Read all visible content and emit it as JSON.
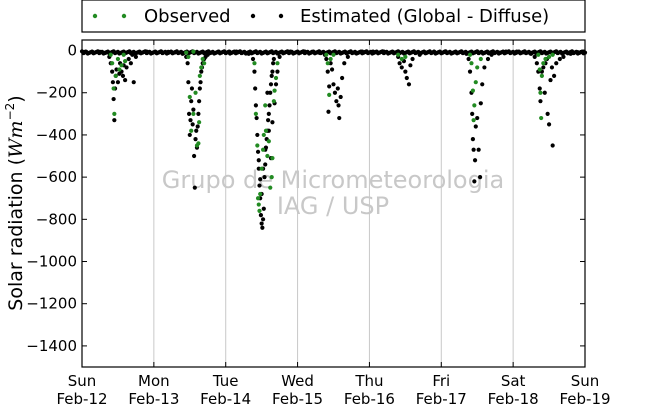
{
  "chart_data": {
    "type": "scatter",
    "ylabel": "Solar radiation (",
    "ylabel_units": {
      "base": "Wm",
      "exponent": "−2"
    },
    "ylabel_close": ")",
    "ylim": [
      -1500,
      50
    ],
    "yticks": [
      0,
      -200,
      -400,
      -600,
      -800,
      -1000,
      -1200,
      -1400
    ],
    "xlim": [
      0,
      7
    ],
    "xticks": [
      {
        "x": 0,
        "day": "Sun",
        "date": "Feb-12"
      },
      {
        "x": 1,
        "day": "Mon",
        "date": "Feb-13"
      },
      {
        "x": 2,
        "day": "Tue",
        "date": "Feb-14"
      },
      {
        "x": 3,
        "day": "Wed",
        "date": "Feb-15"
      },
      {
        "x": 4,
        "day": "Thu",
        "date": "Feb-16"
      },
      {
        "x": 5,
        "day": "Fri",
        "date": "Feb-17"
      },
      {
        "x": 6,
        "day": "Sat",
        "date": "Feb-18"
      },
      {
        "x": 7,
        "day": "Sun",
        "date": "Feb-19"
      }
    ],
    "x_unit": "days since Sun Feb-12 00:00",
    "grid": "vertical",
    "legend_position": "top-outside",
    "watermark": [
      "Grupo de Micrometeorologia",
      "IAG / USP"
    ],
    "series": [
      {
        "name": "Observed",
        "color": "#228b22",
        "points": [
          [
            0.4,
            -20
          ],
          [
            0.42,
            -60
          ],
          [
            0.44,
            -180
          ],
          [
            0.45,
            -300
          ],
          [
            0.47,
            -120
          ],
          [
            0.5,
            -40
          ],
          [
            0.52,
            -90
          ],
          [
            0.55,
            -70
          ],
          [
            0.58,
            -20
          ],
          [
            0.6,
            -50
          ],
          [
            1.45,
            -10
          ],
          [
            1.55,
            -5
          ],
          [
            1.48,
            -30
          ],
          [
            1.5,
            -220
          ],
          [
            1.52,
            -380
          ],
          [
            1.55,
            -300
          ],
          [
            1.58,
            -200
          ],
          [
            1.6,
            -450
          ],
          [
            1.62,
            -440
          ],
          [
            1.63,
            -340
          ],
          [
            1.64,
            -120
          ],
          [
            1.66,
            -80
          ],
          [
            1.68,
            -40
          ],
          [
            1.7,
            -60
          ],
          [
            2.4,
            -60
          ],
          [
            2.42,
            -300
          ],
          [
            2.44,
            -450
          ],
          [
            2.45,
            -700
          ],
          [
            2.46,
            -730
          ],
          [
            2.47,
            -760
          ],
          [
            2.48,
            -680
          ],
          [
            2.5,
            -560
          ],
          [
            2.52,
            -470
          ],
          [
            2.53,
            -400
          ],
          [
            2.55,
            -260
          ],
          [
            2.56,
            -380
          ],
          [
            2.58,
            -500
          ],
          [
            2.6,
            -430
          ],
          [
            2.62,
            -650
          ],
          [
            2.64,
            -600
          ],
          [
            2.65,
            -510
          ],
          [
            2.67,
            -240
          ],
          [
            2.68,
            -190
          ],
          [
            2.7,
            -130
          ],
          [
            2.72,
            -60
          ],
          [
            3.4,
            -20
          ],
          [
            3.42,
            -60
          ],
          [
            3.44,
            -210
          ],
          [
            3.46,
            -40
          ],
          [
            3.5,
            -20
          ],
          [
            4.4,
            -20
          ],
          [
            4.45,
            -40
          ],
          [
            4.5,
            -30
          ],
          [
            5.4,
            -20
          ],
          [
            5.42,
            -60
          ],
          [
            5.44,
            -190
          ],
          [
            5.45,
            -330
          ],
          [
            5.46,
            -260
          ],
          [
            5.48,
            -150
          ],
          [
            5.5,
            -80
          ],
          [
            5.55,
            -40
          ],
          [
            6.35,
            -20
          ],
          [
            6.37,
            -90
          ],
          [
            6.38,
            -200
          ],
          [
            6.39,
            -320
          ],
          [
            6.4,
            -120
          ],
          [
            6.42,
            -60
          ],
          [
            6.45,
            -40
          ],
          [
            6.5,
            -30
          ],
          [
            6.55,
            -20
          ]
        ]
      },
      {
        "name": "Estimated (Global - Diffuse)",
        "color": "#000000",
        "points": [
          [
            0.05,
            -5
          ],
          [
            0.15,
            -8
          ],
          [
            0.25,
            -6
          ],
          [
            0.33,
            -10
          ],
          [
            0.38,
            -30
          ],
          [
            0.4,
            -60
          ],
          [
            0.42,
            -100
          ],
          [
            0.43,
            -150
          ],
          [
            0.44,
            -230
          ],
          [
            0.45,
            -330
          ],
          [
            0.46,
            -180
          ],
          [
            0.47,
            -120
          ],
          [
            0.48,
            -90
          ],
          [
            0.5,
            -150
          ],
          [
            0.52,
            -110
          ],
          [
            0.53,
            -60
          ],
          [
            0.55,
            -100
          ],
          [
            0.57,
            -120
          ],
          [
            0.58,
            -70
          ],
          [
            0.6,
            -140
          ],
          [
            0.62,
            -80
          ],
          [
            0.65,
            -40
          ],
          [
            0.68,
            -60
          ],
          [
            0.7,
            -20
          ],
          [
            0.72,
            -150
          ],
          [
            0.75,
            -30
          ],
          [
            0.8,
            -10
          ],
          [
            0.9,
            -5
          ],
          [
            1.1,
            -5
          ],
          [
            1.2,
            -6
          ],
          [
            1.3,
            -8
          ],
          [
            1.4,
            -15
          ],
          [
            1.45,
            -30
          ],
          [
            1.47,
            -60
          ],
          [
            1.48,
            -150
          ],
          [
            1.49,
            -300
          ],
          [
            1.5,
            -400
          ],
          [
            1.51,
            -330
          ],
          [
            1.52,
            -240
          ],
          [
            1.53,
            -180
          ],
          [
            1.54,
            -350
          ],
          [
            1.55,
            -280
          ],
          [
            1.56,
            -500
          ],
          [
            1.57,
            -650
          ],
          [
            1.58,
            -420
          ],
          [
            1.59,
            -380
          ],
          [
            1.6,
            -460
          ],
          [
            1.61,
            -360
          ],
          [
            1.62,
            -300
          ],
          [
            1.63,
            -240
          ],
          [
            1.64,
            -180
          ],
          [
            1.65,
            -150
          ],
          [
            1.66,
            -100
          ],
          [
            1.67,
            -80
          ],
          [
            1.68,
            -60
          ],
          [
            1.7,
            -40
          ],
          [
            1.72,
            -30
          ],
          [
            1.75,
            -20
          ],
          [
            1.8,
            -10
          ],
          [
            1.9,
            -5
          ],
          [
            2.05,
            -5
          ],
          [
            2.15,
            -5
          ],
          [
            2.25,
            -8
          ],
          [
            2.32,
            -15
          ],
          [
            2.38,
            -40
          ],
          [
            2.4,
            -100
          ],
          [
            2.41,
            -180
          ],
          [
            2.42,
            -260
          ],
          [
            2.43,
            -320
          ],
          [
            2.44,
            -400
          ],
          [
            2.45,
            -480
          ],
          [
            2.46,
            -560
          ],
          [
            2.47,
            -640
          ],
          [
            2.48,
            -700
          ],
          [
            2.49,
            -780
          ],
          [
            2.5,
            -820
          ],
          [
            2.51,
            -840
          ],
          [
            2.52,
            -800
          ],
          [
            2.53,
            -750
          ],
          [
            2.54,
            -600
          ],
          [
            2.55,
            -540
          ],
          [
            2.56,
            -460
          ],
          [
            2.57,
            -420
          ],
          [
            2.58,
            -380
          ],
          [
            2.59,
            -330
          ],
          [
            2.6,
            -300
          ],
          [
            2.61,
            -260
          ],
          [
            2.62,
            -200
          ],
          [
            2.63,
            -160
          ],
          [
            2.64,
            -120
          ],
          [
            2.65,
            -100
          ],
          [
            2.66,
            -60
          ],
          [
            2.67,
            -40
          ],
          [
            2.7,
            -160
          ],
          [
            2.72,
            -100
          ],
          [
            2.75,
            -30
          ],
          [
            2.8,
            -10
          ],
          [
            2.9,
            -5
          ],
          [
            2.46,
            -520
          ],
          [
            2.48,
            -610
          ],
          [
            2.5,
            -680
          ],
          [
            2.52,
            -560
          ],
          [
            2.55,
            -470
          ],
          [
            2.58,
            -200
          ],
          [
            2.6,
            -380
          ],
          [
            2.63,
            -510
          ],
          [
            2.65,
            -340
          ],
          [
            2.68,
            -250
          ],
          [
            3.1,
            -5
          ],
          [
            3.2,
            -6
          ],
          [
            3.3,
            -10
          ],
          [
            3.38,
            -20
          ],
          [
            3.4,
            -40
          ],
          [
            3.42,
            -100
          ],
          [
            3.43,
            -290
          ],
          [
            3.44,
            -170
          ],
          [
            3.46,
            -60
          ],
          [
            3.48,
            -90
          ],
          [
            3.5,
            -160
          ],
          [
            3.52,
            -200
          ],
          [
            3.54,
            -240
          ],
          [
            3.56,
            -180
          ],
          [
            3.57,
            -260
          ],
          [
            3.58,
            -320
          ],
          [
            3.6,
            -220
          ],
          [
            3.62,
            -130
          ],
          [
            3.65,
            -60
          ],
          [
            3.7,
            -30
          ],
          [
            3.8,
            -10
          ],
          [
            3.9,
            -5
          ],
          [
            4.05,
            -5
          ],
          [
            4.2,
            -5
          ],
          [
            4.35,
            -10
          ],
          [
            4.4,
            -30
          ],
          [
            4.42,
            -60
          ],
          [
            4.45,
            -80
          ],
          [
            4.48,
            -50
          ],
          [
            4.5,
            -100
          ],
          [
            4.52,
            -130
          ],
          [
            4.55,
            -160
          ],
          [
            4.57,
            -70
          ],
          [
            4.6,
            -40
          ],
          [
            4.7,
            -20
          ],
          [
            4.8,
            -10
          ],
          [
            4.9,
            -5
          ],
          [
            5.05,
            -5
          ],
          [
            5.2,
            -8
          ],
          [
            5.35,
            -15
          ],
          [
            5.38,
            -40
          ],
          [
            5.4,
            -100
          ],
          [
            5.42,
            -200
          ],
          [
            5.43,
            -300
          ],
          [
            5.44,
            -420
          ],
          [
            5.45,
            -470
          ],
          [
            5.46,
            -620
          ],
          [
            5.47,
            -520
          ],
          [
            5.48,
            -360
          ],
          [
            5.5,
            -320
          ],
          [
            5.52,
            -470
          ],
          [
            5.54,
            -600
          ],
          [
            5.55,
            -250
          ],
          [
            5.57,
            -160
          ],
          [
            5.6,
            -80
          ],
          [
            5.65,
            -40
          ],
          [
            5.7,
            -20
          ],
          [
            5.8,
            -10
          ],
          [
            5.9,
            -5
          ],
          [
            6.05,
            -5
          ],
          [
            6.15,
            -8
          ],
          [
            6.25,
            -15
          ],
          [
            6.3,
            -30
          ],
          [
            6.33,
            -60
          ],
          [
            6.35,
            -100
          ],
          [
            6.37,
            -180
          ],
          [
            6.38,
            -240
          ],
          [
            6.4,
            -100
          ],
          [
            6.42,
            -80
          ],
          [
            6.44,
            -200
          ],
          [
            6.45,
            -60
          ],
          [
            6.47,
            -40
          ],
          [
            6.48,
            -300
          ],
          [
            6.5,
            -350
          ],
          [
            6.52,
            -140
          ],
          [
            6.54,
            -80
          ],
          [
            6.55,
            -450
          ],
          [
            6.57,
            -120
          ],
          [
            6.6,
            -60
          ],
          [
            6.65,
            -40
          ],
          [
            6.7,
            -30
          ],
          [
            6.8,
            -15
          ],
          [
            6.9,
            -8
          ],
          [
            6.98,
            -5
          ]
        ]
      }
    ]
  }
}
